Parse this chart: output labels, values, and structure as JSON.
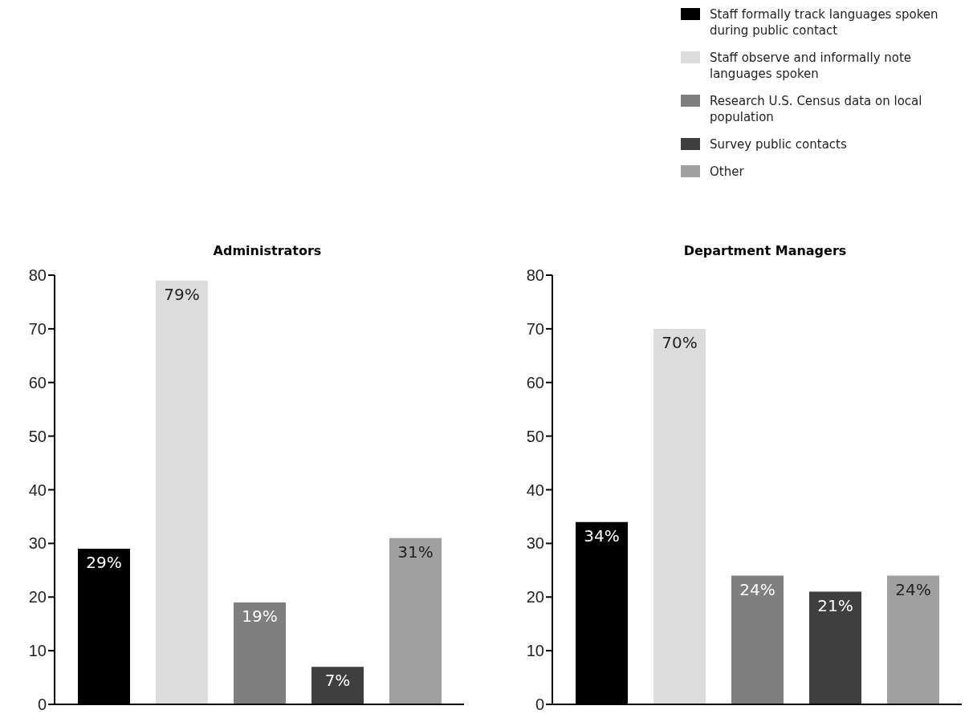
{
  "chart_data": [
    {
      "type": "bar",
      "title": "Administrators",
      "categories": [
        null
      ],
      "ylim": [
        0,
        80
      ],
      "yticks": [
        0,
        10,
        20,
        30,
        40,
        50,
        60,
        70,
        80
      ],
      "grid": false,
      "legend": false,
      "series": [
        {
          "color": "#000000",
          "values": [
            29
          ],
          "value_labels": [
            "29%"
          ]
        },
        {
          "color": "#dcdcdc",
          "values": [
            79
          ],
          "value_labels": [
            "79%"
          ]
        },
        {
          "color": "#7f7f7f",
          "values": [
            19
          ],
          "value_labels": [
            "19%"
          ]
        },
        {
          "color": "#3f3f3f",
          "values": [
            7
          ],
          "value_labels": [
            "7%"
          ]
        },
        {
          "color": "#a0a0a0",
          "values": [
            31
          ],
          "value_labels": [
            "31%"
          ]
        }
      ]
    },
    {
      "type": "bar",
      "title": "Department Managers",
      "categories": [
        null
      ],
      "ylim": [
        0,
        80
      ],
      "yticks": [
        0,
        10,
        20,
        30,
        40,
        50,
        60,
        70,
        80
      ],
      "grid": false,
      "legend": "top right",
      "series": [
        {
          "name": "Staff formally track languages spoken during public contact",
          "color": "#000000",
          "values": [
            34
          ],
          "value_labels": [
            "34%"
          ]
        },
        {
          "name": "Staff observe and informally note languages spoken",
          "color": "#dcdcdc",
          "values": [
            70
          ],
          "value_labels": [
            "70%"
          ]
        },
        {
          "name": "Research U.S. Census data on local population",
          "color": "#7f7f7f",
          "values": [
            24
          ],
          "value_labels": [
            "24%"
          ]
        },
        {
          "name": "Survey public contacts",
          "color": "#3f3f3f",
          "values": [
            21
          ],
          "value_labels": [
            "21%"
          ]
        },
        {
          "name": "Other",
          "color": "#a0a0a0",
          "values": [
            24
          ],
          "value_labels": [
            "24%"
          ]
        }
      ]
    }
  ]
}
